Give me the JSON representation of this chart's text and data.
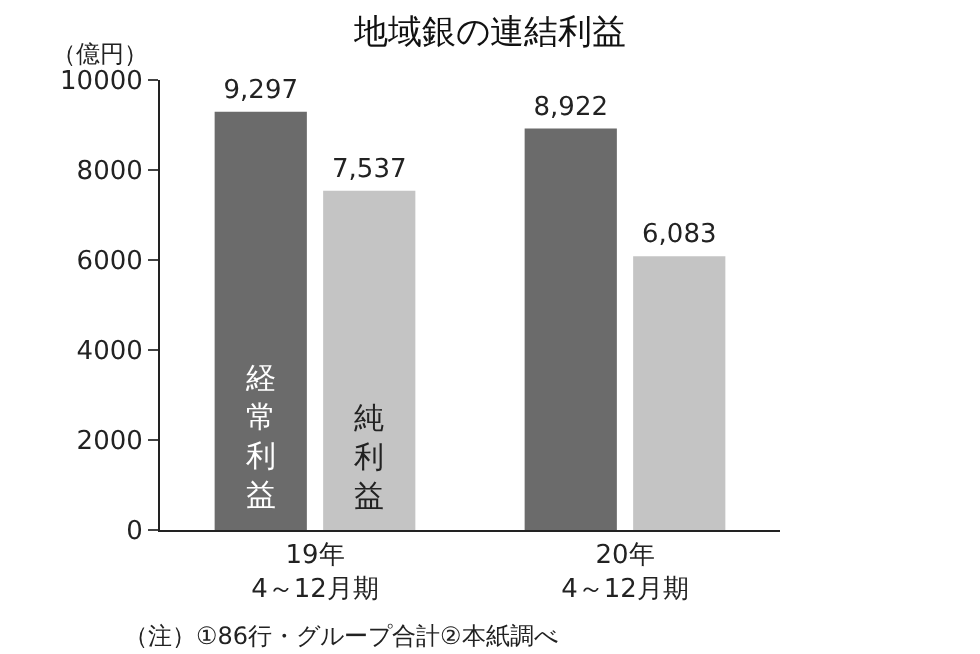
{
  "chart_data": {
    "type": "bar",
    "title": "地域銀の連結利益",
    "ylabel": "（億円）",
    "categories": [
      "19年\n4～12月期",
      "20年\n4～12月期"
    ],
    "series": [
      {
        "name": "経常利益",
        "color": "#6b6b6b",
        "values": [
          9297,
          8922
        ],
        "value_labels": [
          "9,297",
          "8,922"
        ]
      },
      {
        "name": "純利益",
        "color": "#c4c4c4",
        "values": [
          7537,
          6083
        ],
        "value_labels": [
          "7,537",
          "6,083"
        ]
      }
    ],
    "ylim": [
      0,
      10000
    ],
    "yticks": [
      0,
      2000,
      4000,
      6000,
      8000,
      10000
    ],
    "legend": false,
    "annotations": [
      "（注）①86行・グループ合計②本紙調べ"
    ]
  }
}
